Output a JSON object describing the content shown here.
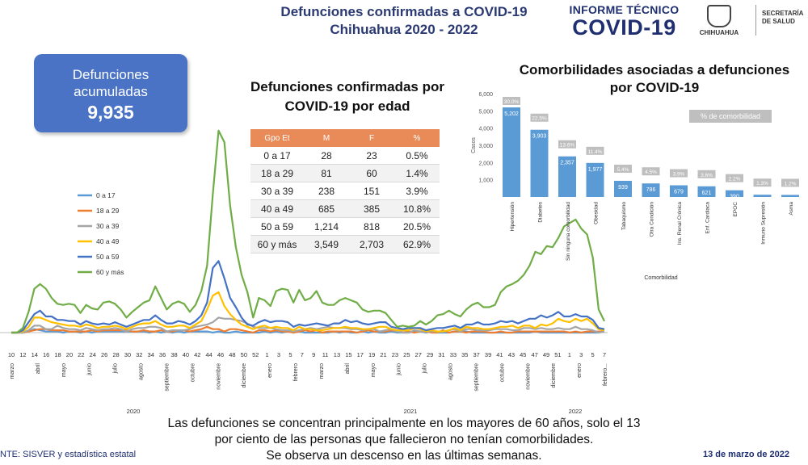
{
  "header": {
    "title_line1": "Defunciones confirmadas a COVID-19",
    "title_line2": "Chihuahua 2020 - 2022",
    "logo_line1": "INFORME TÉCNICO",
    "logo_line2": "COVID-19",
    "chihuahua_label": "CHIHUAHUA",
    "secretaria_line1": "SECRETARÍA",
    "secretaria_line2": "DE SALUD",
    "brand_color": "#1f2f70"
  },
  "kpi": {
    "label_line1": "Defunciones",
    "label_line2": "acumuladas",
    "value": "9,935",
    "color": "#4a73c6"
  },
  "age_table": {
    "title_line1": "Defunciones confirmadas por",
    "title_line2": "COVID-19 por edad",
    "headers": [
      "Gpo Et",
      "M",
      "F",
      "%"
    ],
    "rows": [
      [
        "0 a 17",
        "28",
        "23",
        "0.5%"
      ],
      [
        "18 a 29",
        "81",
        "60",
        "1.4%"
      ],
      [
        "30 a 39",
        "238",
        "151",
        "3.9%"
      ],
      [
        "40 a 49",
        "685",
        "385",
        "10.8%"
      ],
      [
        "50 a 59",
        "1,214",
        "818",
        "20.5%"
      ],
      [
        "60 y más",
        "3,549",
        "2,703",
        "62.9%"
      ]
    ],
    "header_color": "#e98b58"
  },
  "comorbidity": {
    "title_line1": "Comorbilidades asociadas a defunciones",
    "title_line2": "por COVID-19",
    "badge": "% de comorbilidad"
  },
  "footer": {
    "line1": "Las defunciones se concentran principalmente en los mayores de 60 años, solo el 13",
    "line2": "por ciento de las personas que fallecieron no tenían comorbilidades.",
    "line3": "Se observa un descenso en las últimas semanas.",
    "source": "NTE: SISVER y estadística estatal",
    "date": "13 de marzo de 2022"
  },
  "chart_data": [
    {
      "type": "bar",
      "categories": [
        "Hipertensión",
        "Diabetes",
        "Sin ninguna comorbilidad",
        "Obesidad",
        "Tabaquismo",
        "Otra Condición",
        "Ins. Renal Crónica",
        "Enf. Cardiaca",
        "EPOC",
        "Inmuno Supresión",
        "Asma"
      ],
      "values": [
        5202,
        3903,
        2357,
        1977,
        939,
        786,
        679,
        621,
        390,
        130,
        120
      ],
      "value_labels": [
        "5,202",
        "3,903",
        "2,357",
        "1,977",
        "939",
        "786",
        "679",
        "621",
        "390",
        "",
        ""
      ],
      "percent_labels": [
        "30.0%",
        "22.5%",
        "13.6%",
        "11.4%",
        "5.4%",
        "4.5%",
        "3.9%",
        "3.6%",
        "2.2%",
        "1.3%",
        "1.2%"
      ],
      "partial_label": "0.",
      "ylabel": "Casos",
      "xlabel": "Comorbilidad",
      "ylim": [
        0,
        6000
      ],
      "yticks": [
        "6,000",
        "5,000",
        "4,000",
        "3,000",
        "2,000",
        "1,000"
      ],
      "bar_color": "#5b9bd5",
      "badge_color": "#bfbfbf"
    },
    {
      "type": "line",
      "x_tick_labels": [
        "10",
        "12",
        "14",
        "16",
        "18",
        "20",
        "22",
        "24",
        "26",
        "28",
        "30",
        "32",
        "34",
        "36",
        "38",
        "40",
        "42",
        "44",
        "46",
        "48",
        "50",
        "52",
        "1",
        "3",
        "5",
        "7",
        "9",
        "11",
        "13",
        "15",
        "17",
        "19",
        "21",
        "23",
        "25",
        "27",
        "29",
        "31",
        "33",
        "35",
        "37",
        "39",
        "41",
        "43",
        "45",
        "47",
        "49",
        "51",
        "1",
        "3",
        "5",
        "7"
      ],
      "month_labels": [
        "marzo",
        "abril",
        "mayo",
        "junio",
        "julio",
        "agosto",
        "septiembre",
        "octubre",
        "noviembre",
        "diciembre",
        "enero",
        "febrero",
        "marzo",
        "abril",
        "mayo",
        "junio",
        "julio",
        "agosto",
        "septiembre",
        "octubre",
        "noviembre",
        "diciembre",
        "enero",
        "febrero..."
      ],
      "year_labels": [
        "2020",
        "2021",
        "2022"
      ],
      "series": [
        {
          "name": "0 a 17",
          "color": "#5b9bd5",
          "values": [
            0,
            0,
            0,
            1,
            3,
            2,
            1,
            1,
            1,
            0,
            1,
            1,
            0,
            1,
            0,
            1,
            1,
            1,
            1,
            1,
            1,
            1,
            1,
            1,
            0,
            1,
            0,
            1,
            0,
            1,
            0,
            1,
            1,
            1,
            1,
            0,
            1,
            0,
            0,
            1,
            0,
            0,
            0,
            0,
            1,
            0,
            1,
            0,
            1,
            0,
            1,
            0,
            0,
            0,
            0,
            0,
            1,
            0,
            1,
            0,
            0,
            1,
            0,
            1,
            0,
            0,
            1,
            0,
            0,
            0,
            1,
            1,
            0,
            1,
            0,
            0,
            0,
            1,
            1,
            1,
            0,
            0,
            0,
            0,
            0,
            0,
            0,
            0,
            0,
            0,
            0,
            1,
            0,
            0,
            0,
            0,
            0,
            0,
            0,
            0,
            0,
            0,
            0,
            1
          ]
        },
        {
          "name": "18 a 29",
          "color": "#ed7d31",
          "values": [
            0,
            0,
            0,
            1,
            2,
            3,
            3,
            2,
            2,
            2,
            1,
            1,
            1,
            1,
            2,
            1,
            2,
            2,
            2,
            2,
            2,
            1,
            1,
            2,
            1,
            1,
            2,
            1,
            1,
            2,
            2,
            1,
            2,
            3,
            5,
            3,
            3,
            1,
            3,
            3,
            2,
            1,
            0,
            2,
            2,
            1,
            2,
            1,
            1,
            0,
            1,
            2,
            1,
            2,
            0,
            1,
            1,
            1,
            1,
            1,
            0,
            1,
            2,
            1,
            1,
            1,
            2,
            1,
            2,
            1,
            0,
            1,
            1,
            0,
            0,
            2,
            0,
            1,
            1,
            0,
            1,
            1,
            1,
            0,
            0,
            1,
            0,
            0,
            1,
            1,
            1,
            1,
            1,
            1,
            1,
            1,
            1,
            0,
            1,
            0,
            1,
            1,
            1,
            1
          ]
        },
        {
          "name": "30 a 39",
          "color": "#a5a5a5",
          "values": [
            0,
            0,
            0,
            2,
            6,
            6,
            3,
            3,
            6,
            4,
            3,
            3,
            2,
            4,
            3,
            2,
            3,
            3,
            4,
            3,
            1,
            3,
            4,
            4,
            5,
            5,
            4,
            1,
            2,
            2,
            2,
            3,
            5,
            6,
            7,
            9,
            13,
            12,
            12,
            11,
            10,
            8,
            5,
            4,
            4,
            4,
            3,
            2,
            2,
            1,
            2,
            3,
            4,
            3,
            4,
            5,
            4,
            4,
            4,
            3,
            3,
            2,
            3,
            3,
            1,
            2,
            3,
            1,
            0,
            0,
            2,
            1,
            1,
            1,
            1,
            1,
            2,
            3,
            1,
            3,
            3,
            2,
            2,
            2,
            3,
            3,
            3,
            2,
            2,
            4,
            4,
            3,
            4,
            3,
            3,
            4,
            3,
            3,
            5,
            3,
            3,
            2,
            0,
            1
          ]
        },
        {
          "name": "40 a 49",
          "color": "#ffc000",
          "values": [
            0,
            0,
            1,
            5,
            13,
            13,
            11,
            9,
            8,
            7,
            6,
            6,
            5,
            7,
            6,
            4,
            5,
            5,
            6,
            5,
            3,
            5,
            7,
            8,
            8,
            10,
            7,
            5,
            5,
            6,
            6,
            4,
            7,
            10,
            20,
            32,
            35,
            23,
            16,
            11,
            7,
            5,
            3,
            5,
            6,
            4,
            5,
            4,
            4,
            2,
            5,
            3,
            3,
            2,
            2,
            3,
            4,
            4,
            5,
            4,
            4,
            3,
            3,
            4,
            5,
            5,
            3,
            2,
            2,
            2,
            4,
            3,
            1,
            2,
            1,
            1,
            2,
            4,
            2,
            5,
            4,
            4,
            3,
            3,
            4,
            5,
            5,
            6,
            4,
            6,
            6,
            4,
            7,
            6,
            8,
            12,
            10,
            9,
            12,
            10,
            12,
            8,
            3,
            2
          ]
        },
        {
          "name": "50 a 59",
          "color": "#4472c4",
          "values": [
            0,
            0,
            2,
            9,
            16,
            19,
            14,
            14,
            11,
            11,
            10,
            10,
            7,
            10,
            8,
            7,
            8,
            7,
            9,
            7,
            5,
            7,
            9,
            11,
            11,
            15,
            11,
            8,
            8,
            10,
            9,
            7,
            10,
            15,
            26,
            56,
            62,
            47,
            30,
            22,
            13,
            7,
            6,
            9,
            11,
            9,
            10,
            10,
            9,
            5,
            7,
            6,
            7,
            8,
            7,
            6,
            8,
            8,
            11,
            9,
            10,
            8,
            7,
            8,
            9,
            9,
            5,
            4,
            3,
            4,
            4,
            4,
            2,
            3,
            4,
            4,
            5,
            6,
            4,
            7,
            7,
            9,
            7,
            7,
            8,
            10,
            9,
            10,
            8,
            10,
            12,
            12,
            15,
            13,
            15,
            18,
            14,
            14,
            16,
            14,
            14,
            11,
            4,
            3
          ]
        },
        {
          "name": "60 y más",
          "color": "#70ad47",
          "values": [
            0,
            0,
            4,
            18,
            38,
            42,
            38,
            30,
            25,
            24,
            25,
            24,
            17,
            24,
            21,
            20,
            26,
            27,
            25,
            20,
            13,
            18,
            22,
            26,
            28,
            40,
            30,
            20,
            25,
            27,
            25,
            18,
            24,
            36,
            58,
            120,
            175,
            165,
            110,
            74,
            50,
            35,
            13,
            30,
            28,
            23,
            36,
            38,
            37,
            26,
            37,
            28,
            30,
            36,
            26,
            24,
            24,
            28,
            30,
            28,
            26,
            20,
            18,
            19,
            19,
            17,
            11,
            5,
            6,
            5,
            6,
            10,
            7,
            10,
            15,
            16,
            19,
            16,
            14,
            20,
            24,
            26,
            22,
            22,
            24,
            35,
            40,
            42,
            45,
            50,
            58,
            70,
            68,
            75,
            74,
            82,
            92,
            95,
            98,
            90,
            85,
            65,
            20,
            10
          ]
        }
      ],
      "legend_position": "left"
    }
  ]
}
